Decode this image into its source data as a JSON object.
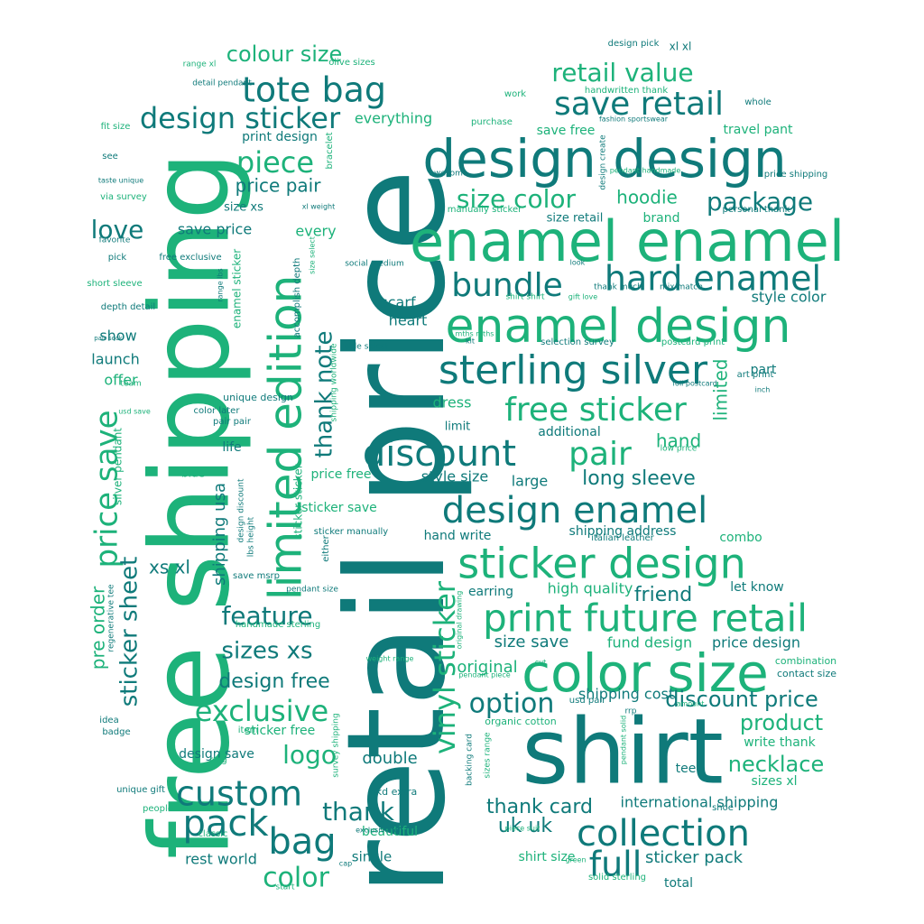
{
  "palette": {
    "teal_dark": "#0f7a7a",
    "teal": "#138f86",
    "green": "#1db27a",
    "green_light": "#22c07a"
  },
  "words": [
    {
      "text": "retail price",
      "color": "#0f7a7a"
    },
    {
      "text": "free shipping",
      "color": "#1db27a"
    },
    {
      "text": "shirt",
      "color": "#0f7a7a"
    },
    {
      "text": "enamel enamel",
      "color": "#1db27a"
    },
    {
      "text": "design design",
      "color": "#0f7a7a"
    },
    {
      "text": "enamel design",
      "color": "#1db27a"
    },
    {
      "text": "color size",
      "color": "#1db27a"
    },
    {
      "text": "limited edition",
      "color": "#1db27a"
    },
    {
      "text": "sterling silver",
      "color": "#0f7a7a"
    },
    {
      "text": "hard enamel",
      "color": "#0f7a7a"
    },
    {
      "text": "discount",
      "color": "#0f7a7a"
    },
    {
      "text": "design enamel",
      "color": "#0f7a7a"
    },
    {
      "text": "sticker design",
      "color": "#1db27a"
    },
    {
      "text": "print future retail",
      "color": "#1db27a"
    },
    {
      "text": "collection",
      "color": "#0f7a7a"
    },
    {
      "text": "free sticker",
      "color": "#1db27a"
    },
    {
      "text": "price save",
      "color": "#1db27a"
    },
    {
      "text": "save retail",
      "color": "#0f7a7a"
    },
    {
      "text": "tote bag",
      "color": "#0f7a7a"
    },
    {
      "text": "design sticker",
      "color": "#0f7a7a"
    },
    {
      "text": "bundle",
      "color": "#0f7a7a"
    },
    {
      "text": "custom",
      "color": "#0f7a7a"
    },
    {
      "text": "pack",
      "color": "#0f7a7a"
    },
    {
      "text": "bag",
      "color": "#0f7a7a"
    },
    {
      "text": "pair",
      "color": "#1db27a"
    },
    {
      "text": "vinyl sticker",
      "color": "#1db27a"
    },
    {
      "text": "full",
      "color": "#0f7a7a"
    },
    {
      "text": "thank note",
      "color": "#0f7a7a"
    },
    {
      "text": "retail value",
      "color": "#1db27a"
    },
    {
      "text": "package",
      "color": "#0f7a7a"
    },
    {
      "text": "size color",
      "color": "#1db27a"
    },
    {
      "text": "piece",
      "color": "#1db27a"
    },
    {
      "text": "love",
      "color": "#0f7a7a"
    },
    {
      "text": "colour size",
      "color": "#1db27a"
    },
    {
      "text": "sticker sheet",
      "color": "#0f7a7a"
    },
    {
      "text": "exclusive",
      "color": "#1db27a"
    },
    {
      "text": "option",
      "color": "#0f7a7a"
    },
    {
      "text": "feature",
      "color": "#0f7a7a"
    },
    {
      "text": "sizes xs",
      "color": "#0f7a7a"
    },
    {
      "text": "thank",
      "color": "#0f7a7a"
    },
    {
      "text": "color",
      "color": "#1db27a"
    },
    {
      "text": "logo",
      "color": "#1db27a"
    },
    {
      "text": "discount price",
      "color": "#0f7a7a"
    },
    {
      "text": "product",
      "color": "#1db27a"
    },
    {
      "text": "necklace",
      "color": "#1db27a"
    },
    {
      "text": "long sleeve",
      "color": "#0f7a7a"
    },
    {
      "text": "design free",
      "color": "#0f7a7a"
    },
    {
      "text": "hoodie",
      "color": "#1db27a"
    },
    {
      "text": "hand",
      "color": "#1db27a"
    },
    {
      "text": "limited",
      "color": "#1db27a"
    },
    {
      "text": "pre order",
      "color": "#1db27a"
    },
    {
      "text": "thank card",
      "color": "#0f7a7a"
    },
    {
      "text": "uk uk",
      "color": "#0f7a7a"
    },
    {
      "text": "friend",
      "color": "#0f7a7a"
    },
    {
      "text": "price pair",
      "color": "#0f7a7a"
    },
    {
      "text": "style color",
      "color": "#0f7a7a"
    },
    {
      "text": "shipping usa",
      "color": "#0f7a7a"
    },
    {
      "text": "xs xl",
      "color": "#0f7a7a"
    },
    {
      "text": "double",
      "color": "#0f7a7a"
    },
    {
      "text": "sticker pack",
      "color": "#0f7a7a"
    },
    {
      "text": "international shipping",
      "color": "#0f7a7a"
    },
    {
      "text": "size save",
      "color": "#0f7a7a"
    },
    {
      "text": "fund design",
      "color": "#1db27a"
    },
    {
      "text": "price design",
      "color": "#0f7a7a"
    },
    {
      "text": "shipping cost",
      "color": "#0f7a7a"
    },
    {
      "text": "high quality",
      "color": "#1db27a"
    },
    {
      "text": "original",
      "color": "#1db27a"
    },
    {
      "text": "everything",
      "color": "#1db27a"
    },
    {
      "text": "print design",
      "color": "#0f7a7a"
    },
    {
      "text": "save price",
      "color": "#0f7a7a"
    },
    {
      "text": "size xs",
      "color": "#0f7a7a"
    },
    {
      "text": "every",
      "color": "#1db27a"
    },
    {
      "text": "scarf",
      "color": "#0f7a7a"
    },
    {
      "text": "heart",
      "color": "#0f7a7a"
    },
    {
      "text": "dress",
      "color": "#1db27a"
    },
    {
      "text": "limit",
      "color": "#0f7a7a"
    },
    {
      "text": "additional",
      "color": "#0f7a7a"
    },
    {
      "text": "style size",
      "color": "#0f7a7a"
    },
    {
      "text": "large",
      "color": "#0f7a7a"
    },
    {
      "text": "hand write",
      "color": "#0f7a7a"
    },
    {
      "text": "shipping address",
      "color": "#0f7a7a"
    },
    {
      "text": "combo",
      "color": "#1db27a"
    },
    {
      "text": "let know",
      "color": "#0f7a7a"
    },
    {
      "text": "earring",
      "color": "#0f7a7a"
    },
    {
      "text": "price free",
      "color": "#1db27a"
    },
    {
      "text": "sticker save",
      "color": "#1db27a"
    },
    {
      "text": "show",
      "color": "#0f7a7a"
    },
    {
      "text": "launch",
      "color": "#0f7a7a"
    },
    {
      "text": "offer",
      "color": "#1db27a"
    },
    {
      "text": "life",
      "color": "#0f7a7a"
    },
    {
      "text": "blue",
      "color": "#1db27a"
    },
    {
      "text": "sticker free",
      "color": "#1db27a"
    },
    {
      "text": "design save",
      "color": "#0f7a7a"
    },
    {
      "text": "beautiful",
      "color": "#1db27a"
    },
    {
      "text": "single",
      "color": "#0f7a7a"
    },
    {
      "text": "rest world",
      "color": "#0f7a7a"
    },
    {
      "text": "shirt size",
      "color": "#1db27a"
    },
    {
      "text": "total",
      "color": "#0f7a7a"
    },
    {
      "text": "write thank",
      "color": "#1db27a"
    },
    {
      "text": "sizes xl",
      "color": "#1db27a"
    },
    {
      "text": "tee",
      "color": "#0f7a7a"
    },
    {
      "text": "part",
      "color": "#0f7a7a"
    },
    {
      "text": "save free",
      "color": "#1db27a"
    },
    {
      "text": "travel pant",
      "color": "#1db27a"
    },
    {
      "text": "brand",
      "color": "#1db27a"
    },
    {
      "text": "size retail",
      "color": "#0f7a7a"
    },
    {
      "text": "enamel sticker",
      "color": "#1db27a"
    },
    {
      "text": "silver pendant",
      "color": "#1db27a"
    },
    {
      "text": "sticker sticker",
      "color": "#1db27a"
    },
    {
      "text": "hkd extra",
      "color": "#0f7a7a"
    },
    {
      "text": "organic cotton",
      "color": "#1db27a"
    },
    {
      "text": "unique design",
      "color": "#0f7a7a"
    },
    {
      "text": "design pick",
      "color": "#0f7a7a"
    },
    {
      "text": "xl xl",
      "color": "#0f7a7a"
    },
    {
      "text": "olive sizes",
      "color": "#1db27a"
    },
    {
      "text": "range xl",
      "color": "#1db27a"
    },
    {
      "text": "detail pendant",
      "color": "#0f7a7a"
    },
    {
      "text": "handwritten thank",
      "color": "#1db27a"
    },
    {
      "text": "work",
      "color": "#1db27a"
    },
    {
      "text": "purchase",
      "color": "#1db27a"
    },
    {
      "text": "whole",
      "color": "#0f7a7a"
    },
    {
      "text": "fashion sportswear",
      "color": "#0f7a7a"
    },
    {
      "text": "fit size",
      "color": "#1db27a"
    },
    {
      "text": "see",
      "color": "#0f7a7a"
    },
    {
      "text": "taste unique",
      "color": "#0f7a7a"
    },
    {
      "text": "via survey",
      "color": "#1db27a"
    },
    {
      "text": "favorite",
      "color": "#0f7a7a"
    },
    {
      "text": "pick",
      "color": "#0f7a7a"
    },
    {
      "text": "free exclusive",
      "color": "#0f7a7a"
    },
    {
      "text": "short sleeve",
      "color": "#1db27a"
    },
    {
      "text": "depth detail",
      "color": "#0f7a7a"
    },
    {
      "text": "pair sock",
      "color": "#0f7a7a"
    },
    {
      "text": "team",
      "color": "#1db27a"
    },
    {
      "text": "usd save",
      "color": "#1db27a"
    },
    {
      "text": "color later",
      "color": "#0f7a7a"
    },
    {
      "text": "pair pair",
      "color": "#0f7a7a"
    },
    {
      "text": "awesome",
      "color": "#0f7a7a"
    },
    {
      "text": "manually sticker",
      "color": "#1db27a"
    },
    {
      "text": "pendant handmade",
      "color": "#1db27a"
    },
    {
      "text": "price shipping",
      "color": "#0f7a7a"
    },
    {
      "text": "personal thank",
      "color": "#0f7a7a"
    },
    {
      "text": "xl weight",
      "color": "#0f7a7a"
    },
    {
      "text": "mths mths",
      "color": "#1db27a"
    },
    {
      "text": "social medium",
      "color": "#0f7a7a"
    },
    {
      "text": "look",
      "color": "#0f7a7a"
    },
    {
      "text": "thank much",
      "color": "#0f7a7a"
    },
    {
      "text": "mix match",
      "color": "#0f7a7a"
    },
    {
      "text": "shirt shirt",
      "color": "#1db27a"
    },
    {
      "text": "gift love",
      "color": "#1db27a"
    },
    {
      "text": "kit",
      "color": "#0f7a7a"
    },
    {
      "text": "selection survey",
      "color": "#0f7a7a"
    },
    {
      "text": "postcard print",
      "color": "#1db27a"
    },
    {
      "text": "able select",
      "color": "#0f7a7a"
    },
    {
      "text": "art print",
      "color": "#0f7a7a"
    },
    {
      "text": "foil postcard",
      "color": "#0f7a7a"
    },
    {
      "text": "inch",
      "color": "#0f7a7a"
    },
    {
      "text": "low price",
      "color": "#1db27a"
    },
    {
      "text": "italian leather",
      "color": "#0f7a7a"
    },
    {
      "text": "save msrp",
      "color": "#0f7a7a"
    },
    {
      "text": "sticker manually",
      "color": "#0f7a7a"
    },
    {
      "text": "either",
      "color": "#0f7a7a"
    },
    {
      "text": "pendant size",
      "color": "#0f7a7a"
    },
    {
      "text": "handmade sterling",
      "color": "#1db27a"
    },
    {
      "text": "weight range",
      "color": "#1db27a"
    },
    {
      "text": "pendant piece",
      "color": "#1db27a"
    },
    {
      "text": "cut",
      "color": "#1db27a"
    },
    {
      "text": "usd pair",
      "color": "#0f7a7a"
    },
    {
      "text": "rrp",
      "color": "#0f7a7a"
    },
    {
      "text": "amount",
      "color": "#1db27a"
    },
    {
      "text": "combination",
      "color": "#1db27a"
    },
    {
      "text": "contact size",
      "color": "#0f7a7a"
    },
    {
      "text": "idea",
      "color": "#0f7a7a"
    },
    {
      "text": "badge",
      "color": "#0f7a7a"
    },
    {
      "text": "item",
      "color": "#1db27a"
    },
    {
      "text": "ring",
      "color": "#1db27a"
    },
    {
      "text": "unique gift",
      "color": "#0f7a7a"
    },
    {
      "text": "people",
      "color": "#1db27a"
    },
    {
      "text": "classic",
      "color": "#1db27a"
    },
    {
      "text": "exclusive foil",
      "color": "#0f7a7a"
    },
    {
      "text": "cap",
      "color": "#0f7a7a"
    },
    {
      "text": "start",
      "color": "#1db27a"
    },
    {
      "text": "piece suit",
      "color": "#1db27a"
    },
    {
      "text": "green",
      "color": "#1db27a"
    },
    {
      "text": "solid sterling",
      "color": "#1db27a"
    },
    {
      "text": "shoe",
      "color": "#0f7a7a"
    },
    {
      "text": "backing card",
      "color": "#0f7a7a"
    },
    {
      "text": "sizes range",
      "color": "#1db27a"
    },
    {
      "text": "pendant solid",
      "color": "#1db27a"
    },
    {
      "text": "original drawing",
      "color": "#1db27a"
    },
    {
      "text": "survey shipping",
      "color": "#1db27a"
    },
    {
      "text": "design discount",
      "color": "#0f7a7a"
    },
    {
      "text": "lbs height",
      "color": "#0f7a7a"
    },
    {
      "text": "regenerative tee",
      "color": "#0f7a7a"
    },
    {
      "text": "shipping worldwide",
      "color": "#1db27a"
    },
    {
      "text": "accomplish depth",
      "color": "#0f7a7a"
    },
    {
      "text": "size select",
      "color": "#1db27a"
    },
    {
      "text": "range lbs",
      "color": "#0f7a7a"
    },
    {
      "text": "bracelet",
      "color": "#1db27a"
    },
    {
      "text": "design create",
      "color": "#0f7a7a"
    }
  ]
}
